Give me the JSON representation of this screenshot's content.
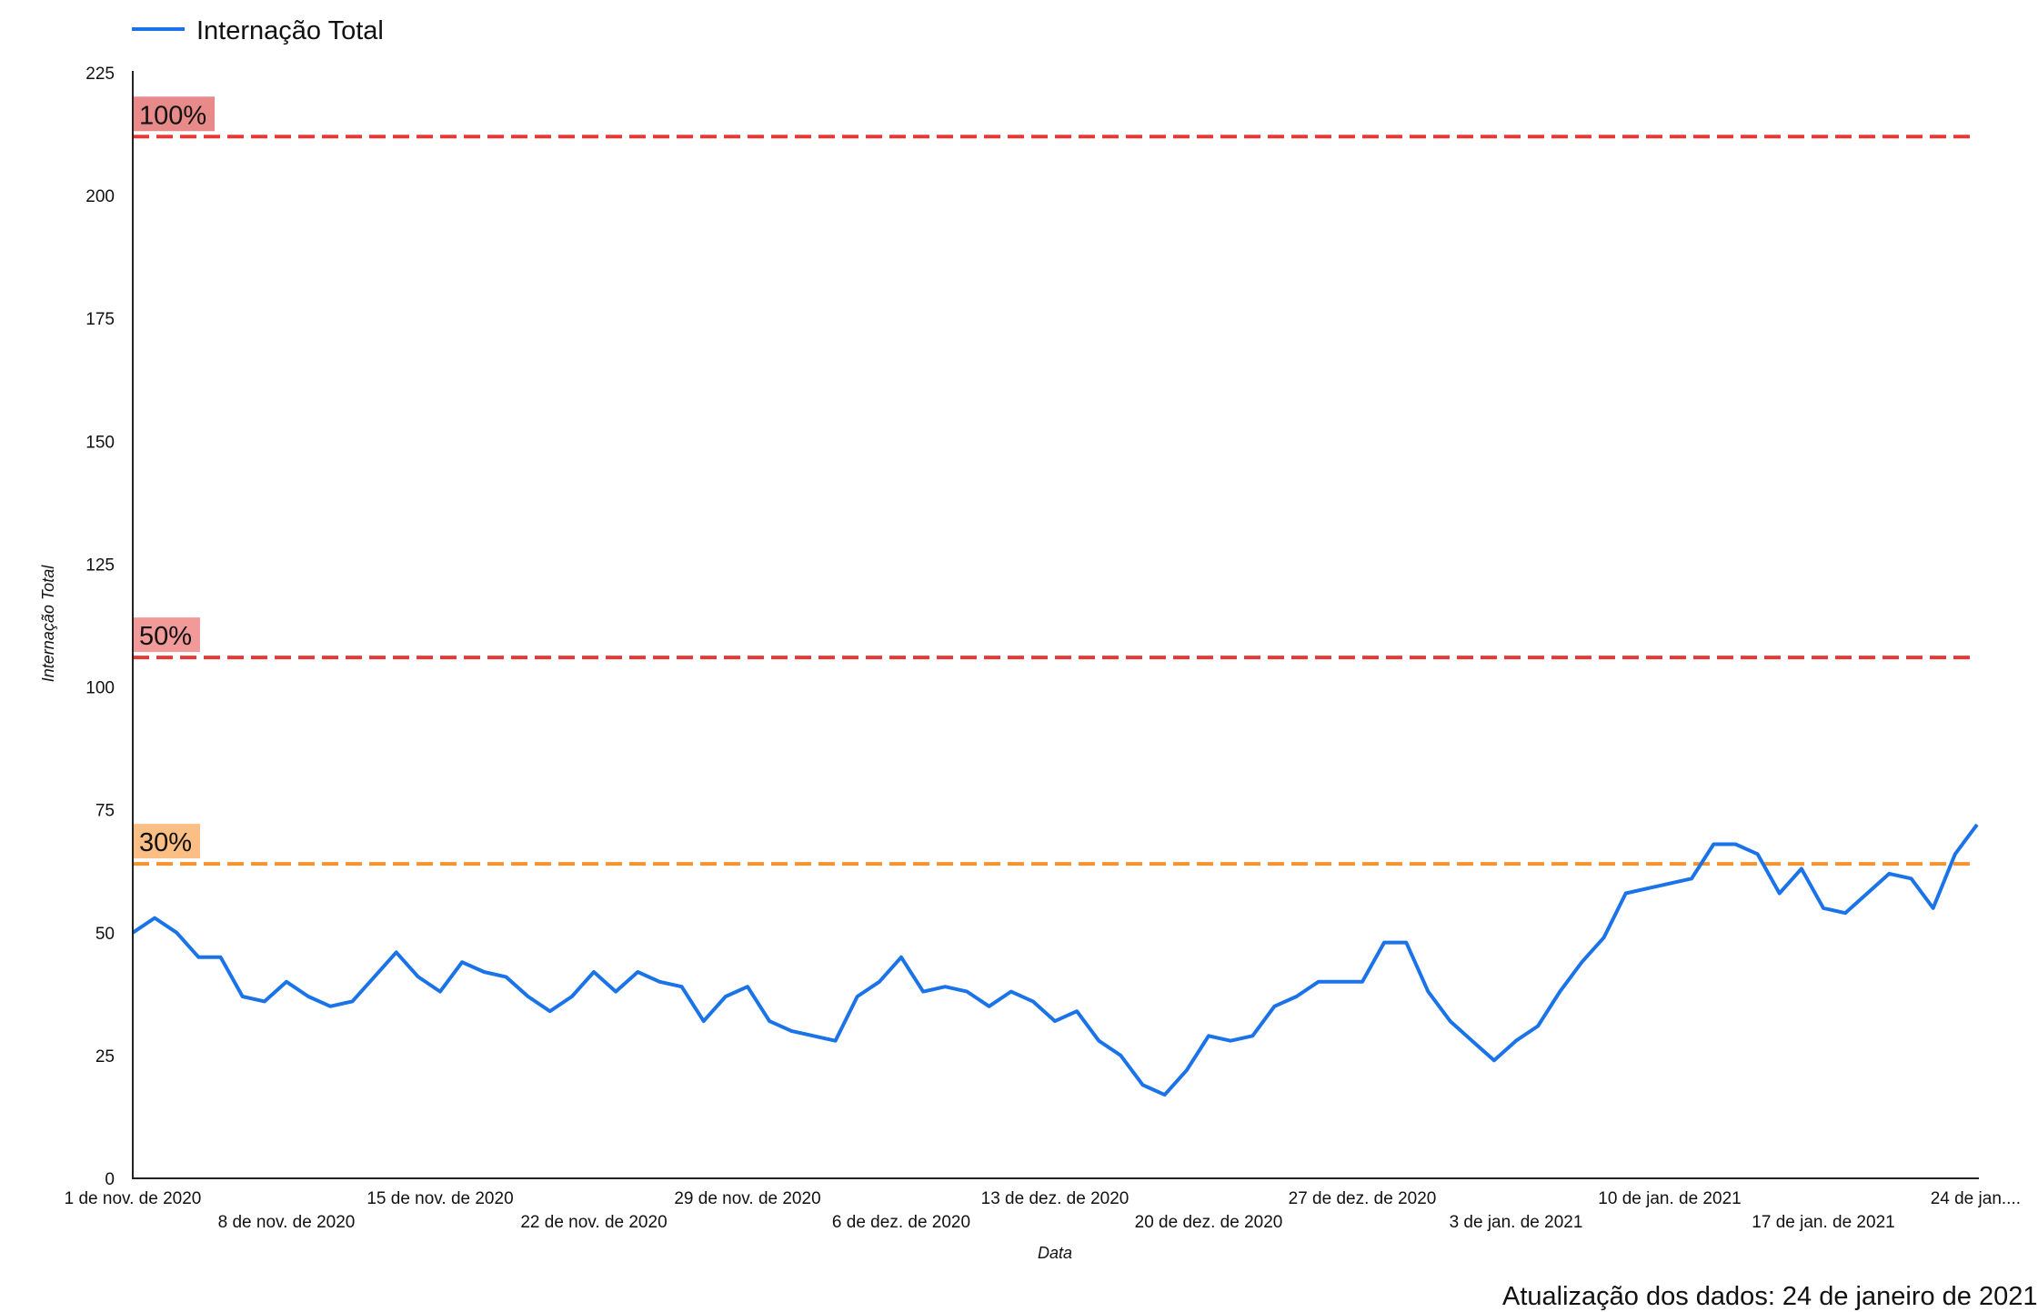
{
  "footer": {
    "update_text": "Atualização dos dados: 24 de janeiro de 2021"
  },
  "chart_data": {
    "type": "line",
    "title": "",
    "xlabel": "Data",
    "ylabel": "Internação Total",
    "ylim": [
      0,
      225
    ],
    "y_ticks": [
      0,
      25,
      50,
      75,
      100,
      125,
      150,
      175,
      200,
      225
    ],
    "grid": false,
    "legend": {
      "position": "top-left",
      "entries": [
        "Internação Total"
      ]
    },
    "x_tick_labels": [
      "1 de nov. de 2020",
      "8 de nov. de 2020",
      "15 de nov. de 2020",
      "22 de nov. de 2020",
      "29 de nov. de 2020",
      "6 de dez. de 2020",
      "13 de dez. de 2020",
      "20 de dez. de 2020",
      "27 de dez. de 2020",
      "3 de jan. de 2021",
      "10 de jan. de 2021",
      "17 de jan. de 2021",
      "24 de jan...."
    ],
    "series": [
      {
        "name": "Internação Total",
        "color": "#1a73e8",
        "x_start": "2020-11-01",
        "x_end": "2021-01-25",
        "values": [
          50,
          53,
          50,
          45,
          45,
          37,
          36,
          40,
          37,
          35,
          36,
          41,
          46,
          41,
          38,
          44,
          42,
          41,
          37,
          34,
          37,
          42,
          38,
          42,
          40,
          39,
          32,
          37,
          39,
          32,
          30,
          29,
          28,
          37,
          40,
          45,
          38,
          39,
          38,
          35,
          38,
          36,
          32,
          34,
          28,
          25,
          19,
          17,
          22,
          29,
          28,
          29,
          35,
          37,
          40,
          40,
          40,
          48,
          48,
          38,
          32,
          28,
          24,
          28,
          31,
          38,
          44,
          49,
          58,
          59,
          60,
          61,
          68,
          68,
          66,
          58,
          63,
          55,
          54,
          58,
          62,
          61,
          55,
          66,
          72
        ]
      }
    ],
    "reference_lines": [
      {
        "label": "100%",
        "value": 212,
        "color": "#e53935",
        "label_bg": "#e98a8a"
      },
      {
        "label": "50%",
        "value": 106,
        "color": "#e53935",
        "label_bg": "#f29a9a"
      },
      {
        "label": "30%",
        "value": 64,
        "color": "#f59331",
        "label_bg": "#fbbf85"
      }
    ]
  }
}
